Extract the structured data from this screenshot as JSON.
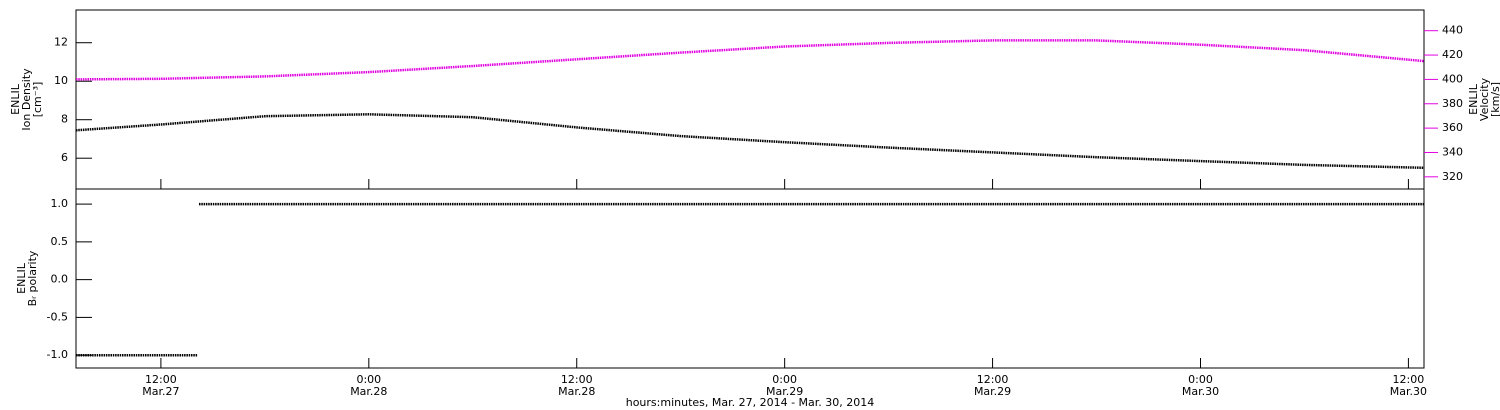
{
  "chart_data": [
    {
      "type": "line",
      "ylabel": [
        "ENLIL",
        "Ion Density",
        "[cm⁻³]"
      ],
      "y2label": [
        "ENLIL",
        "Velocity",
        "[km/s]"
      ],
      "x": [
        7.1,
        12,
        18,
        24,
        30,
        36,
        42,
        48,
        54,
        60,
        66,
        72,
        78,
        84.9
      ],
      "xlim": [
        7.1,
        84.9
      ],
      "xticks": [
        {
          "value": 12,
          "label": "12:00"
        },
        {
          "value": 24,
          "label": "0:00"
        },
        {
          "value": 36,
          "label": "12:00"
        },
        {
          "value": 48,
          "label": "0:00"
        },
        {
          "value": 60,
          "label": "12:00"
        },
        {
          "value": 72,
          "label": "0:00"
        },
        {
          "value": 84,
          "label": "12:00"
        }
      ],
      "ylim": [
        4.4,
        13.7
      ],
      "yticks": [
        6,
        8,
        10,
        12
      ],
      "y2lim": [
        310,
        457
      ],
      "y2ticks": [
        320,
        340,
        360,
        380,
        400,
        420,
        440
      ],
      "y2color": "#e000e0",
      "series": [
        {
          "name": "Ion Density",
          "color": "#000000",
          "values": [
            7.45,
            7.75,
            8.18,
            8.28,
            8.13,
            7.6,
            7.15,
            6.83,
            6.55,
            6.3,
            6.05,
            5.85,
            5.65,
            5.5
          ]
        },
        {
          "name": "Velocity",
          "color": "#e000e0",
          "axis": "y2",
          "values": [
            400,
            400.5,
            402.5,
            406,
            411,
            416.5,
            422,
            427,
            430,
            432,
            432,
            428.5,
            424,
            415
          ]
        }
      ]
    },
    {
      "type": "line",
      "ylabel": [
        "ENLIL",
        "Bᵣ polarity"
      ],
      "xlabel": "hours:minutes, Mar. 27, 2014 - Mar. 30, 2014",
      "x": [
        7.1,
        14.1,
        14.15,
        14.2,
        84.9
      ],
      "xlim": [
        7.1,
        84.9
      ],
      "xticks": [
        {
          "value": 12,
          "label": "12:00",
          "date": "Mar.27"
        },
        {
          "value": 24,
          "label": "0:00",
          "date": "Mar.28"
        },
        {
          "value": 36,
          "label": "12:00",
          "date": "Mar.28"
        },
        {
          "value": 48,
          "label": "0:00",
          "date": "Mar.29"
        },
        {
          "value": 60,
          "label": "12:00",
          "date": "Mar.29"
        },
        {
          "value": 72,
          "label": "0:00",
          "date": "Mar.30"
        },
        {
          "value": 84,
          "label": "12:00",
          "date": "Mar.30"
        }
      ],
      "ylim": [
        -1.17,
        1.2
      ],
      "yticks": [
        {
          "value": -1,
          "label": "-1.0"
        },
        {
          "value": -0.5,
          "label": "-0.5"
        },
        {
          "value": 0,
          "label": "0.0"
        },
        {
          "value": 0.5,
          "label": "0.5"
        },
        {
          "value": 1,
          "label": "1.0"
        }
      ],
      "series": [
        {
          "name": "Br polarity",
          "color": "#000000",
          "values": [
            -1,
            -1,
            null,
            1,
            1
          ]
        }
      ]
    }
  ]
}
